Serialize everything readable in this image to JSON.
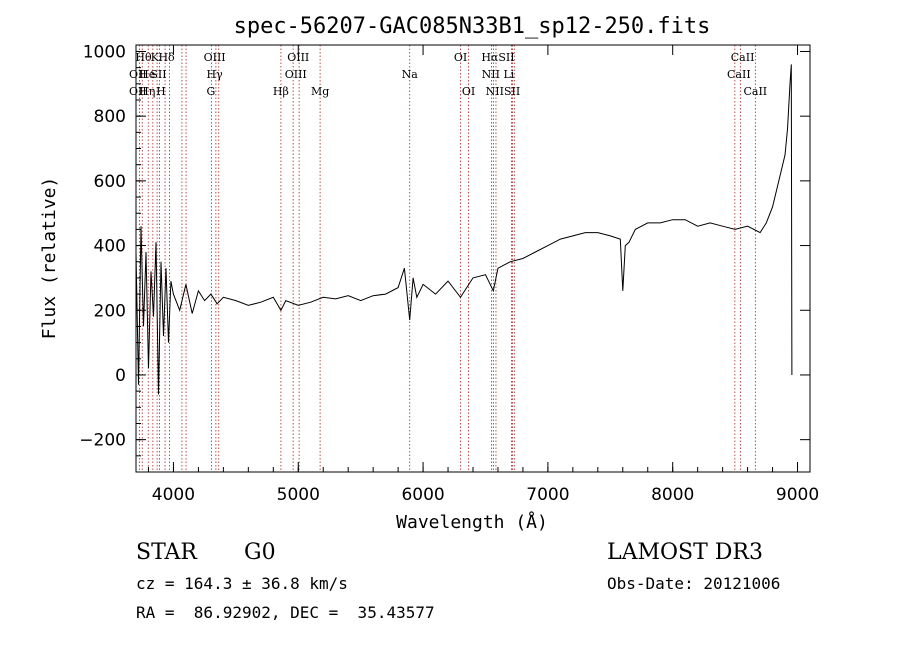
{
  "chart_data": {
    "type": "line",
    "title": "spec-56207-GAC085N33B1_sp12-250.fits",
    "xlabel": "Wavelength (Å)",
    "ylabel": "Flux (relative)",
    "xlim": [
      3700,
      9100
    ],
    "ylim": [
      -300,
      1020
    ],
    "xticks": [
      4000,
      5000,
      6000,
      7000,
      8000,
      9000
    ],
    "yticks": [
      -200,
      0,
      200,
      400,
      600,
      800,
      1000
    ],
    "line_color": "#000000",
    "marker_color": "#b22222",
    "series": [
      {
        "x": [
          3700,
          3720,
          3740,
          3760,
          3780,
          3800,
          3820,
          3840,
          3860,
          3880,
          3900,
          3920,
          3940,
          3960,
          3980,
          4000,
          4050,
          4100,
          4150,
          4200,
          4250,
          4300,
          4350,
          4400,
          4500,
          4600,
          4700,
          4800,
          4861,
          4900,
          5000,
          5100,
          5200,
          5300,
          5400,
          5500,
          5600,
          5700,
          5800,
          5850,
          5893,
          5920,
          5950,
          6000,
          6100,
          6200,
          6300,
          6400,
          6500,
          6563,
          6600,
          6700,
          6800,
          6900,
          7000,
          7100,
          7200,
          7300,
          7400,
          7500,
          7580,
          7600,
          7620,
          7650,
          7700,
          7800,
          7900,
          8000,
          8100,
          8200,
          8300,
          8400,
          8500,
          8600,
          8700,
          8750,
          8800,
          8850,
          8900,
          8920,
          8940,
          8950,
          8955
        ],
        "y": [
          380,
          -30,
          460,
          150,
          380,
          20,
          320,
          180,
          410,
          -60,
          350,
          120,
          330,
          100,
          290,
          250,
          200,
          280,
          190,
          260,
          230,
          250,
          220,
          240,
          230,
          215,
          225,
          240,
          200,
          230,
          215,
          225,
          240,
          235,
          245,
          230,
          245,
          250,
          270,
          330,
          170,
          300,
          240,
          280,
          250,
          290,
          240,
          300,
          310,
          260,
          330,
          350,
          360,
          380,
          400,
          420,
          430,
          440,
          440,
          430,
          420,
          260,
          400,
          410,
          450,
          470,
          470,
          480,
          480,
          460,
          470,
          460,
          450,
          460,
          440,
          470,
          520,
          600,
          680,
          760,
          900,
          960,
          0
        ]
      }
    ],
    "line_markers": [
      {
        "wave": 3727,
        "top": "",
        "mid": "OII",
        "low": "OII"
      },
      {
        "wave": 3750,
        "top": "",
        "mid": "",
        "low": ""
      },
      {
        "wave": 3798,
        "top": "",
        "mid": "",
        "low": ""
      },
      {
        "wave": 3835,
        "top": "",
        "mid": "",
        "low": ""
      },
      {
        "wave": 3869,
        "top": "",
        "mid": "",
        "low": ""
      },
      {
        "wave": 3889,
        "top": "",
        "mid": "",
        "low": ""
      },
      {
        "wave": 3933,
        "top": "",
        "mid": "",
        "low": ""
      },
      {
        "wave": 3968,
        "top": "",
        "mid": "",
        "low": ""
      },
      {
        "wave": 4068,
        "top": "",
        "mid": "",
        "low": ""
      },
      {
        "wave": 4101,
        "top": "",
        "mid": "",
        "low": ""
      },
      {
        "wave": 4304,
        "top": "",
        "mid": "",
        "low": ""
      },
      {
        "wave": 4340,
        "top": "",
        "mid": "",
        "low": ""
      },
      {
        "wave": 4363,
        "top": "",
        "mid": "",
        "low": ""
      },
      {
        "wave": 4861,
        "top": "",
        "mid": "",
        "low": ""
      },
      {
        "wave": 4959,
        "top": "",
        "mid": "",
        "low": ""
      },
      {
        "wave": 5007,
        "top": "",
        "mid": "",
        "low": ""
      },
      {
        "wave": 5175,
        "top": "",
        "mid": "",
        "low": ""
      },
      {
        "wave": 5893,
        "top": "",
        "mid": "",
        "low": ""
      },
      {
        "wave": 6300,
        "top": "",
        "mid": "",
        "low": ""
      },
      {
        "wave": 6364,
        "top": "",
        "mid": "",
        "low": ""
      },
      {
        "wave": 6548,
        "top": "",
        "mid": "",
        "low": ""
      },
      {
        "wave": 6563,
        "top": "",
        "mid": "",
        "low": ""
      },
      {
        "wave": 6584,
        "top": "",
        "mid": "",
        "low": ""
      },
      {
        "wave": 6708,
        "top": "",
        "mid": "",
        "low": ""
      },
      {
        "wave": 6717,
        "top": "",
        "mid": "",
        "low": ""
      },
      {
        "wave": 6731,
        "top": "",
        "mid": "",
        "low": ""
      },
      {
        "wave": 8498,
        "top": "",
        "mid": "",
        "low": ""
      },
      {
        "wave": 8542,
        "top": "",
        "mid": "",
        "low": ""
      },
      {
        "wave": 8662,
        "top": "",
        "mid": "",
        "low": ""
      }
    ],
    "line_labels_top": [
      {
        "wave": 3760,
        "text": "Hθ"
      },
      {
        "wave": 3850,
        "text": "K"
      },
      {
        "wave": 3945,
        "text": "Hδ"
      },
      {
        "wave": 4330,
        "text": "OIII"
      },
      {
        "wave": 5000,
        "text": "OIII"
      },
      {
        "wave": 6300,
        "text": "OI"
      },
      {
        "wave": 6600,
        "text": "HαSII"
      },
      {
        "wave": 8560,
        "text": "CaII"
      }
    ],
    "line_labels_mid": [
      {
        "wave": 3715,
        "text": "OII"
      },
      {
        "wave": 3790,
        "text": "He"
      },
      {
        "wave": 3880,
        "text": "SII"
      },
      {
        "wave": 4330,
        "text": "Hγ"
      },
      {
        "wave": 4980,
        "text": "OIII"
      },
      {
        "wave": 5893,
        "text": "Na"
      },
      {
        "wave": 6600,
        "text": "NII Li"
      },
      {
        "wave": 8530,
        "text": "CaII"
      }
    ],
    "line_labels_low": [
      {
        "wave": 3715,
        "text": "OII"
      },
      {
        "wave": 3790,
        "text": "Hη"
      },
      {
        "wave": 3900,
        "text": "H"
      },
      {
        "wave": 4300,
        "text": "G"
      },
      {
        "wave": 4861,
        "text": "Hβ"
      },
      {
        "wave": 5175,
        "text": "Mg"
      },
      {
        "wave": 6364,
        "text": "OI"
      },
      {
        "wave": 6640,
        "text": "NIISII"
      },
      {
        "wave": 8662,
        "text": "CaII"
      }
    ]
  },
  "info": {
    "objtype": "STAR",
    "subclass": "G0",
    "survey": "LAMOST DR3",
    "cz": "cz = 164.3 ± 36.8 km/s",
    "obsdate": "Obs-Date: 20121006",
    "radec": "RA =  86.92902, DEC =  35.43577"
  }
}
